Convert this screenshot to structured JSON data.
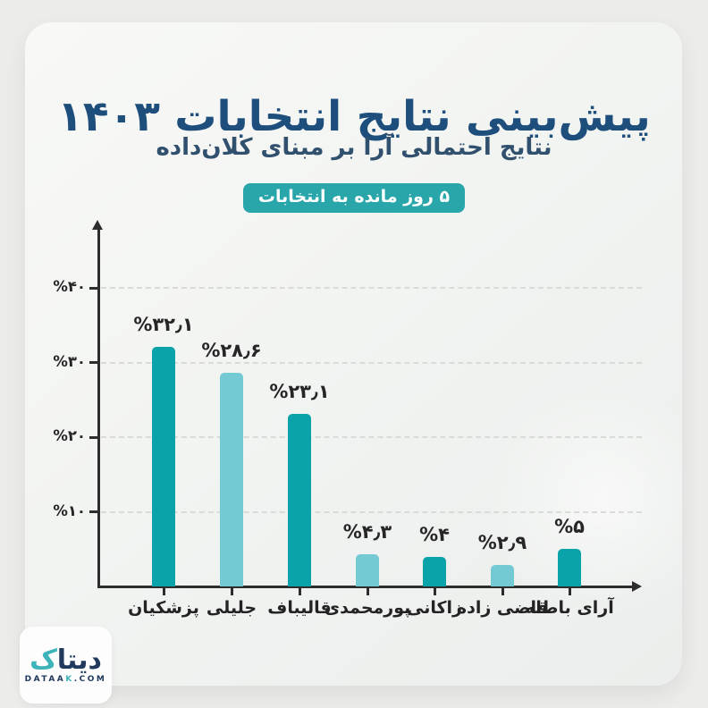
{
  "header": {
    "title": "پیش‌بینی نتایج انتخابات ۱۴۰۳",
    "subtitle": "نتایج احتمالی آرا بر مبنای کلان‌داده",
    "badge": "۵ روز مانده به انتخابات"
  },
  "chart_data": {
    "type": "bar",
    "title": "پیش‌بینی نتایج انتخابات ۱۴۰۳",
    "subtitle": "نتایج احتمالی آرا بر مبنای کلان‌داده",
    "annotation": "۵ روز مانده به انتخابات",
    "direction": "rtl",
    "categories": [
      "پزشکیان",
      "جلیلی",
      "قالیباف",
      "پورمحمدی",
      "زاکانی",
      "قاضی زاده",
      "آرای باطله"
    ],
    "values": [
      32.1,
      28.6,
      23.1,
      4.3,
      4,
      2.9,
      5
    ],
    "value_labels": [
      "%۳۲٫۱",
      "%۲۸٫۶",
      "%۲۳٫۱",
      "%۴٫۳",
      "%۴",
      "%۲٫۹",
      "%۵"
    ],
    "bar_colors": [
      "#0aa3aa",
      "#74cad2",
      "#0aa3aa",
      "#74cad2",
      "#0aa3aa",
      "#74cad2",
      "#0aa3aa"
    ],
    "y_ticks": [
      {
        "v": 40,
        "label": "%۴۰"
      },
      {
        "v": 30,
        "label": "%۳۰"
      },
      {
        "v": 20,
        "label": "%۲۰"
      },
      {
        "v": 10,
        "label": "%۱۰"
      }
    ],
    "ylim": [
      0,
      45
    ],
    "xlabel": "",
    "ylabel": "",
    "grid": "horizontal-dashed",
    "legend": "none"
  },
  "footer": {
    "logo_fa_main": "دیتا",
    "logo_fa_kaf": "ک",
    "logo_en_1": "DATAA",
    "logo_en_k": "K",
    "logo_en_2": ".COM"
  },
  "colors": {
    "page_bg": "#ecedeb",
    "card_bg": "#f2f4f2",
    "title_navy": "#1d4e7c",
    "subtitle_navy": "#30506e",
    "badge_bg": "#29a6a9",
    "bar_dark_teal": "#0aa3aa",
    "bar_light_teal": "#74cad2",
    "axis_color": "#2d2d2d",
    "gridline_color": "#d9dbd8",
    "chart_text": "#262626",
    "logo_navy": "#20395c",
    "logo_teal": "#3eb4ba"
  }
}
